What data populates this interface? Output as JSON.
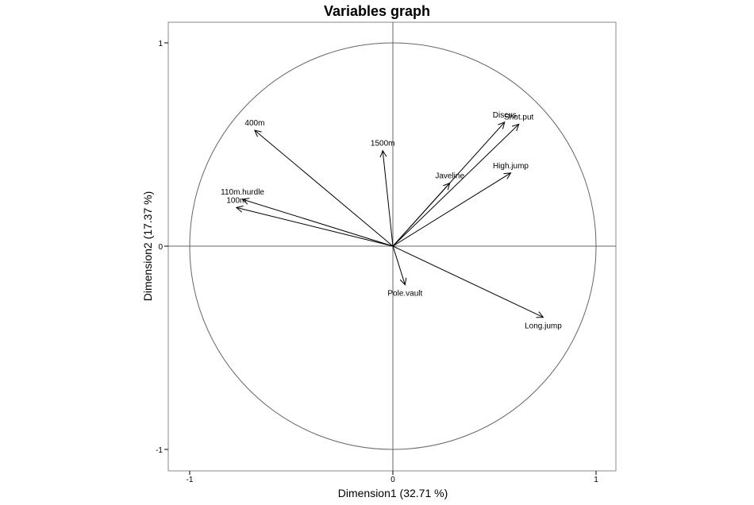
{
  "chart_data": {
    "type": "scatter",
    "subtype": "correlation-circle",
    "title": "Variables graph",
    "xlabel": "Dimension1 (32.71 %)",
    "ylabel": "Dimension2 (17.37 %)",
    "xlim": [
      -1.1,
      1.1
    ],
    "ylim": [
      -1.1,
      1.1
    ],
    "x_ticks": [
      -1,
      0,
      1
    ],
    "y_ticks": [
      -1,
      0,
      1
    ],
    "x_tick_labels": [
      "-1",
      "0",
      "1"
    ],
    "y_tick_labels": [
      "-1",
      "0",
      "1"
    ],
    "unit_circle": true,
    "grid": false,
    "legend": "none",
    "line_color": "#000000",
    "circle_color": "#666666",
    "variables": [
      {
        "name": "100m",
        "x": -0.77,
        "y": 0.19
      },
      {
        "name": "110m.hurdle",
        "x": -0.74,
        "y": 0.23
      },
      {
        "name": "400m",
        "x": -0.68,
        "y": 0.57
      },
      {
        "name": "1500m",
        "x": -0.05,
        "y": 0.47
      },
      {
        "name": "Discus",
        "x": 0.55,
        "y": 0.61
      },
      {
        "name": "Shot.put",
        "x": 0.62,
        "y": 0.6
      },
      {
        "name": "Javeline",
        "x": 0.28,
        "y": 0.31
      },
      {
        "name": "High.jump",
        "x": 0.58,
        "y": 0.36
      },
      {
        "name": "Pole.vault",
        "x": 0.06,
        "y": -0.19
      },
      {
        "name": "Long.jump",
        "x": 0.74,
        "y": -0.35
      }
    ]
  }
}
